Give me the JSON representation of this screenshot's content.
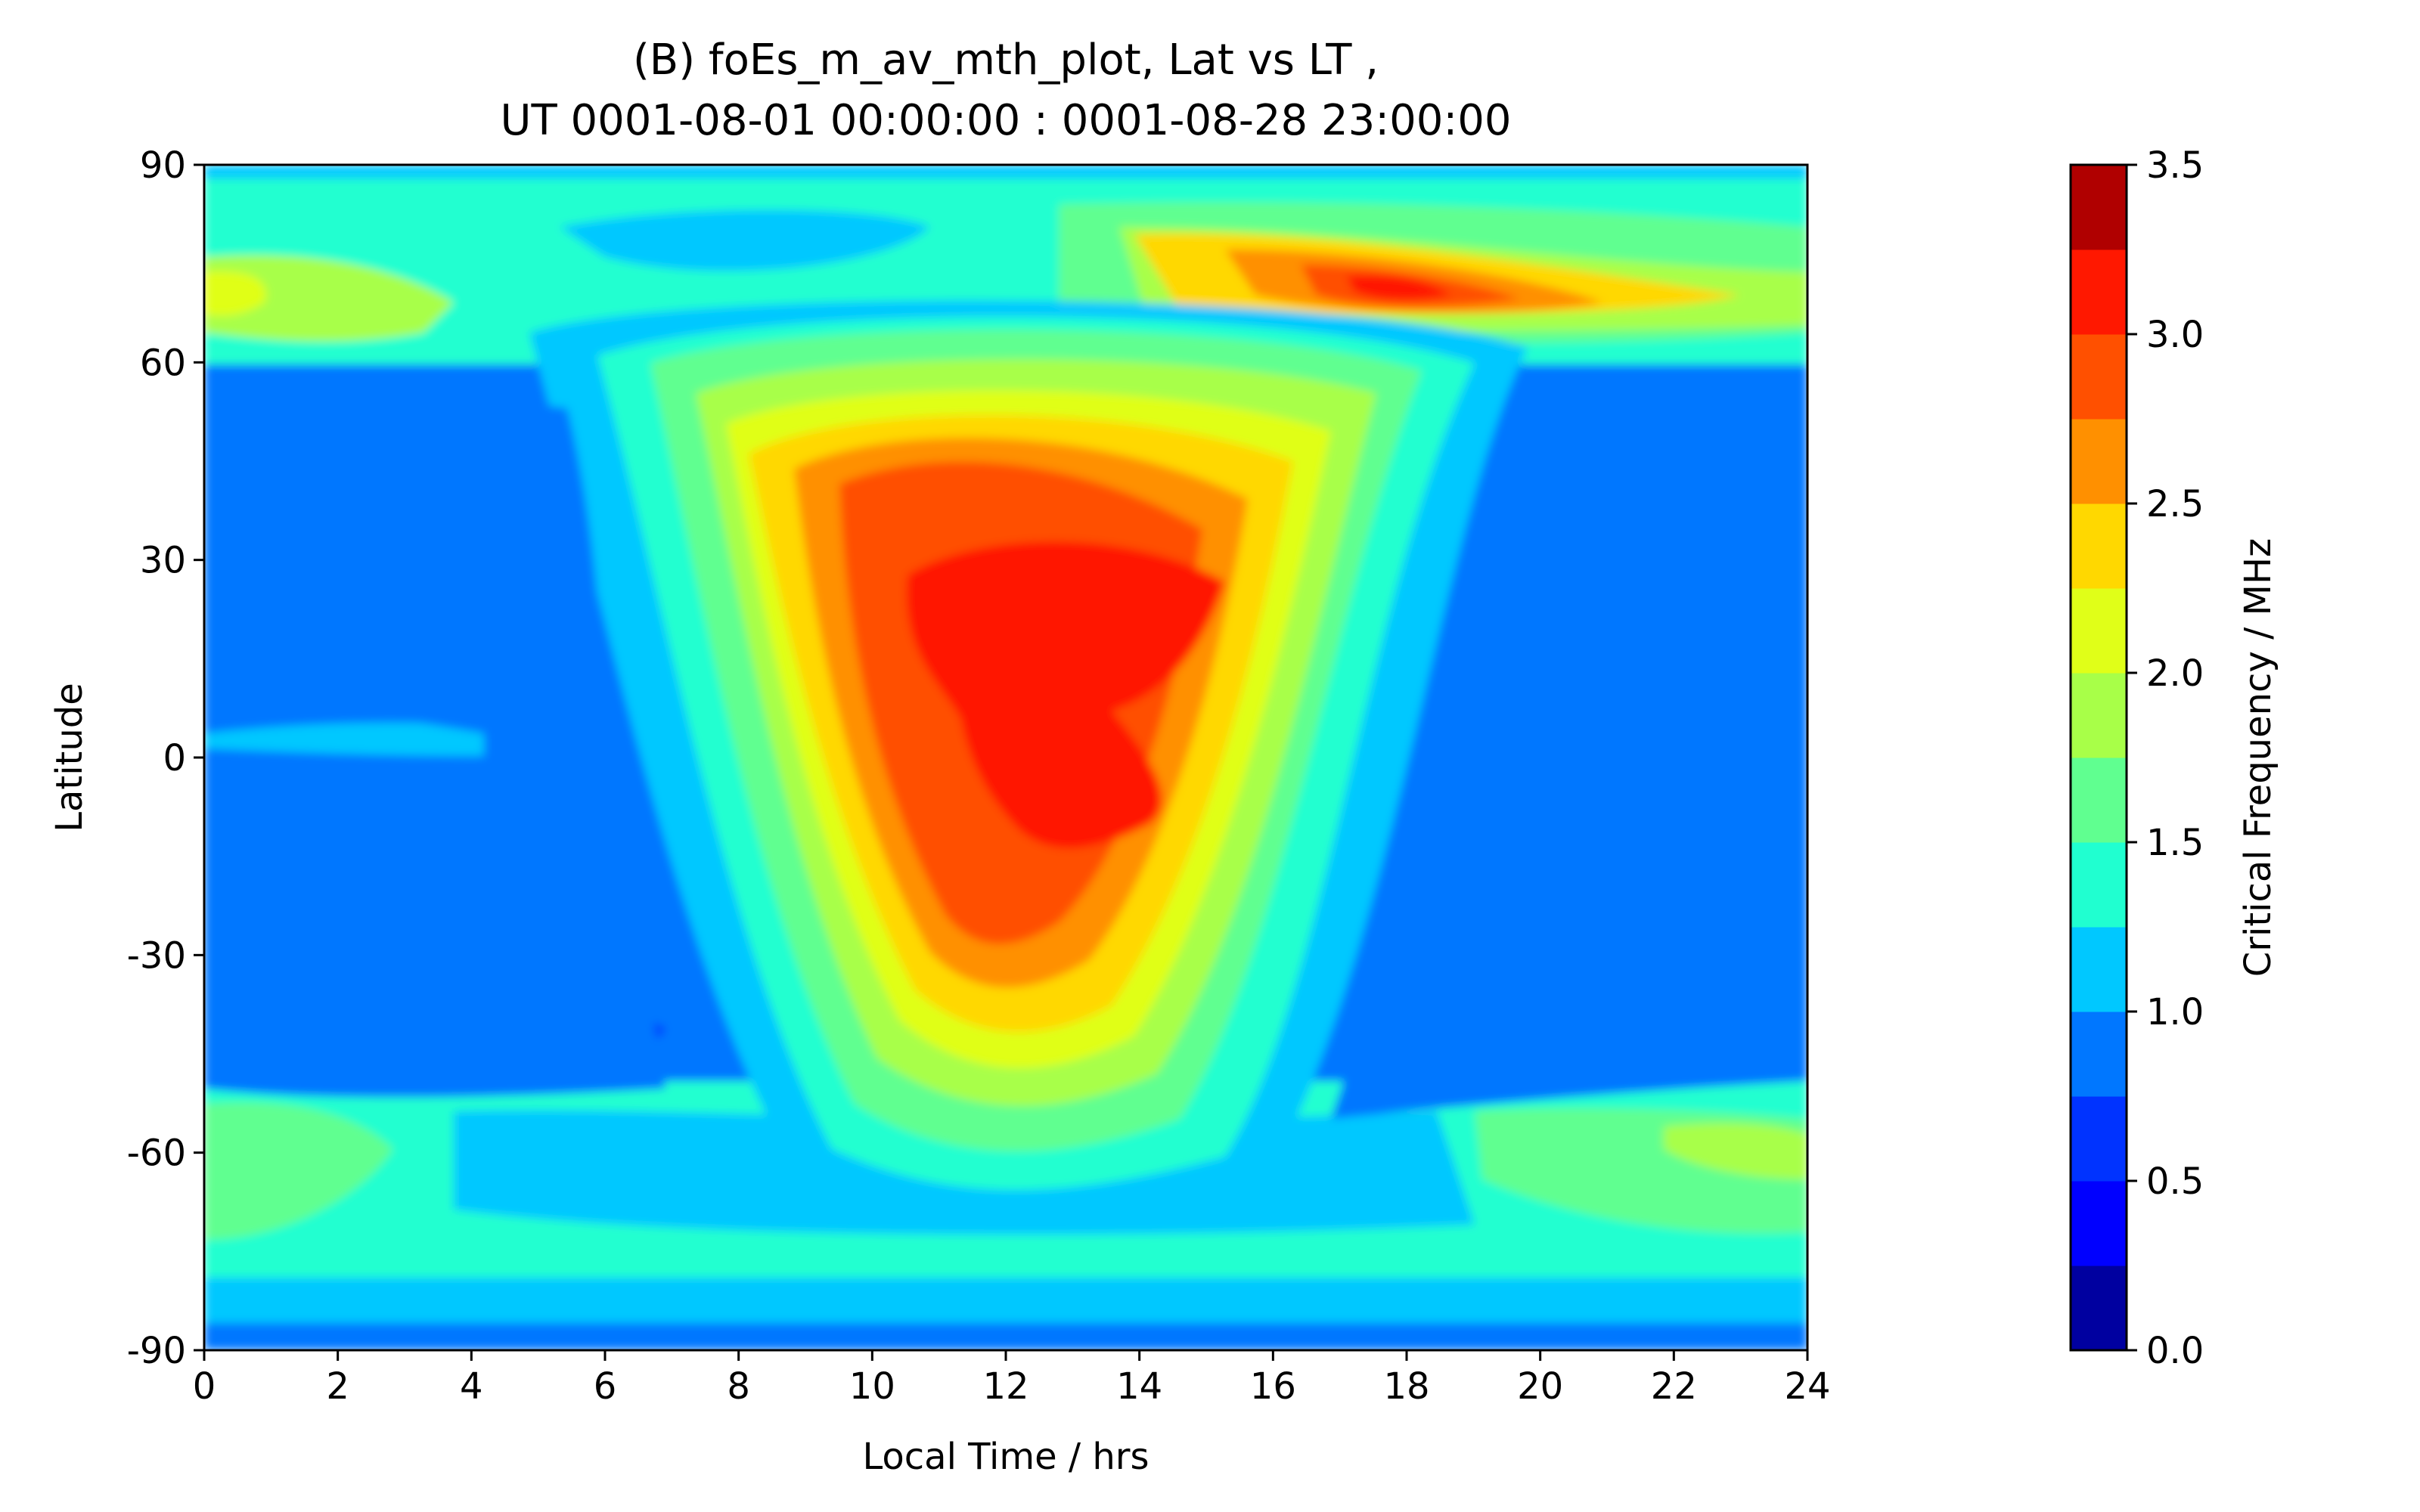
{
  "chart_data": {
    "type": "heatmap",
    "title_line1": "(B) foEs_m_av_mth_plot, Lat vs LT ,",
    "title_line2": "UT 0001-08-01 00:00:00 : 0001-08-28 23:00:00",
    "xlabel": "Local Time / hrs",
    "ylabel": "Latitude",
    "colorbar_label": "Critical Frequency / MHz",
    "xlim": [
      0,
      24
    ],
    "ylim": [
      -90,
      90
    ],
    "x_ticks": [
      0,
      2,
      4,
      6,
      8,
      10,
      12,
      14,
      16,
      18,
      20,
      22,
      24
    ],
    "y_ticks": [
      90,
      60,
      30,
      0,
      -30,
      -60,
      -90
    ],
    "y_tick_labels": [
      "90",
      "60",
      "30",
      "0",
      "-30",
      "-60",
      "-90"
    ],
    "colorbar_ticks": [
      "0.0",
      "0.5",
      "1.0",
      "1.5",
      "2.0",
      "2.5",
      "3.0",
      "3.5"
    ],
    "levels": [
      0.0,
      0.25,
      0.5,
      0.75,
      1.0,
      1.25,
      1.5,
      1.75,
      2.0,
      2.25,
      2.5,
      2.75,
      3.0,
      3.25,
      3.5
    ],
    "colors": [
      "#0000a0",
      "#0000ff",
      "#0033ff",
      "#0077ff",
      "#00c8ff",
      "#20ffd0",
      "#60ff90",
      "#a8ff48",
      "#e0ff18",
      "#ffd800",
      "#ff9000",
      "#ff5000",
      "#ff1800",
      "#b00000"
    ],
    "field_summary": {
      "background_level": "0.75-1.0 MHz (night sector, all latitudes)",
      "daytime_peak": "3.0-3.25 MHz centred ~12-13 LT, latitude ~-15 to 35",
      "high_latitude_band": "2.75-3.25 MHz near 17-19 LT at ~70N",
      "minimum": "0.5-0.75 MHz patch near 5-7 LT at ~-40"
    }
  }
}
